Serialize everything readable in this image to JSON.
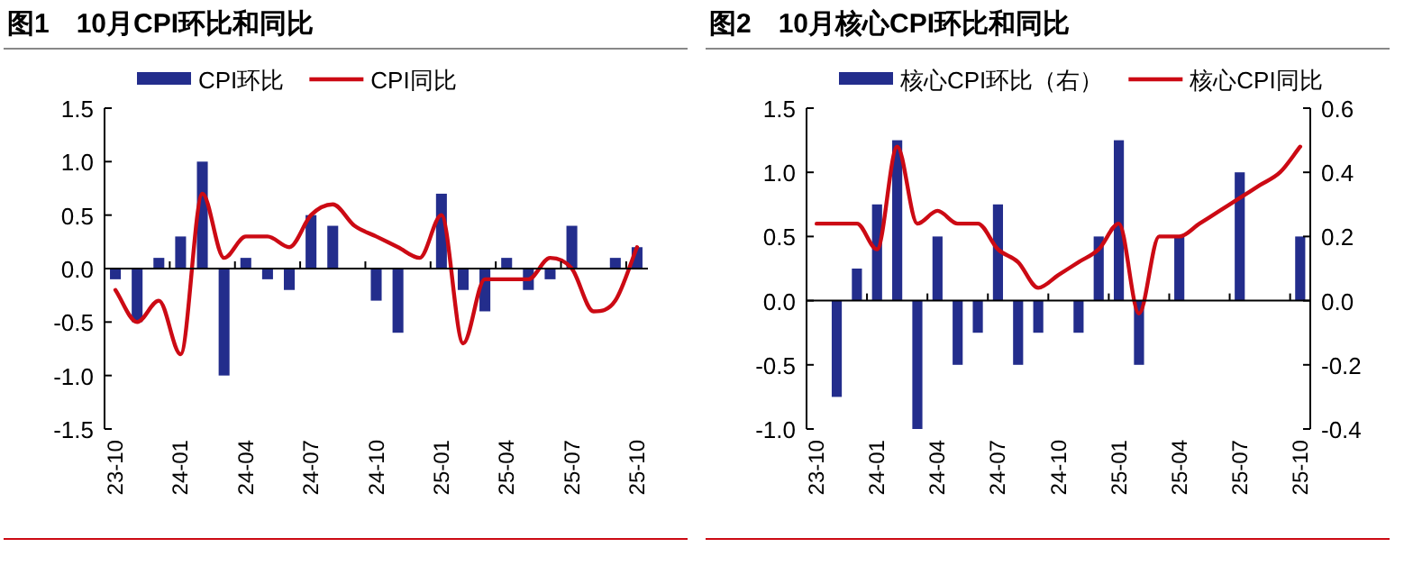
{
  "chart_data": [
    {
      "type": "bar",
      "title": "图1　10月CPI环比和同比",
      "categories": [
        "23-10",
        null,
        null,
        "24-01",
        null,
        null,
        "24-04",
        null,
        null,
        "24-07",
        null,
        null,
        "24-10",
        null,
        null,
        "25-01",
        null,
        null,
        "25-04",
        null,
        null,
        "25-07",
        null,
        null,
        "25-10"
      ],
      "series": [
        {
          "name": "CPI环比",
          "color": "#232d8c",
          "values": [
            -0.1,
            -0.5,
            0.1,
            0.3,
            1.0,
            -1.0,
            0.1,
            -0.1,
            -0.2,
            0.5,
            0.4,
            0.0,
            -0.3,
            -0.6,
            0.0,
            0.7,
            -0.2,
            -0.4,
            0.1,
            -0.2,
            -0.1,
            0.4,
            0.0,
            0.1,
            0.2
          ]
        },
        {
          "name": "CPI同比",
          "type": "line",
          "color": "#cc0a14",
          "values": [
            -0.2,
            -0.5,
            -0.3,
            -0.8,
            0.7,
            0.1,
            0.3,
            0.3,
            0.2,
            0.5,
            0.6,
            0.4,
            0.3,
            0.2,
            0.1,
            0.5,
            -0.7,
            -0.1,
            -0.1,
            -0.1,
            0.1,
            0.0,
            -0.4,
            -0.3,
            0.2
          ]
        }
      ],
      "ylim": [
        -1.5,
        1.5
      ],
      "yticks": [
        1.5,
        {
          "value": 1.0,
          "label": "1.0"
        },
        0.5,
        {
          "value": 0,
          "label": "0.0"
        },
        -0.5,
        {
          "value": -1.0,
          "label": "-1.0"
        },
        -1.5
      ],
      "legend": "top"
    },
    {
      "type": "bar",
      "title": "图2　10月核心CPI环比和同比",
      "categories": [
        "23-10",
        null,
        null,
        "24-01",
        null,
        null,
        "24-04",
        null,
        null,
        "24-07",
        null,
        null,
        "24-10",
        null,
        null,
        "25-01",
        null,
        null,
        "25-04",
        null,
        null,
        "25-07",
        null,
        null,
        "25-10"
      ],
      "series": [
        {
          "name": "核心CPI环比（右）",
          "axis": "y2",
          "color": "#232d8c",
          "values": [
            0.0,
            -0.3,
            0.1,
            0.3,
            0.5,
            -0.4,
            0.2,
            -0.2,
            -0.1,
            0.3,
            -0.2,
            -0.1,
            0.0,
            -0.1,
            0.2,
            0.5,
            -0.2,
            0.0,
            0.2,
            0.0,
            0.0,
            0.4,
            0.0,
            0.0,
            0.2
          ]
        },
        {
          "name": "核心CPI同比",
          "type": "line",
          "color": "#cc0a14",
          "values": [
            0.6,
            0.6,
            0.6,
            0.4,
            1.2,
            0.6,
            0.7,
            0.6,
            0.6,
            0.4,
            0.3,
            0.1,
            0.2,
            0.3,
            0.4,
            0.6,
            -0.1,
            0.5,
            0.5,
            0.6,
            0.7,
            0.8,
            0.9,
            1.0,
            1.2
          ]
        }
      ],
      "ylim": [
        -1.0,
        1.5
      ],
      "yticks": [
        1.5,
        {
          "value": 1.0,
          "label": "1.0"
        },
        0.5,
        {
          "value": 0,
          "label": "0.0"
        },
        -0.5,
        {
          "value": -1.0,
          "label": "-1.0"
        }
      ],
      "y2lim": [
        -0.4,
        0.6
      ],
      "y2ticks": [
        0.6,
        0.4,
        0.2,
        {
          "value": 0,
          "label": "0.0"
        },
        -0.2,
        -0.4
      ],
      "legend": "top"
    }
  ]
}
